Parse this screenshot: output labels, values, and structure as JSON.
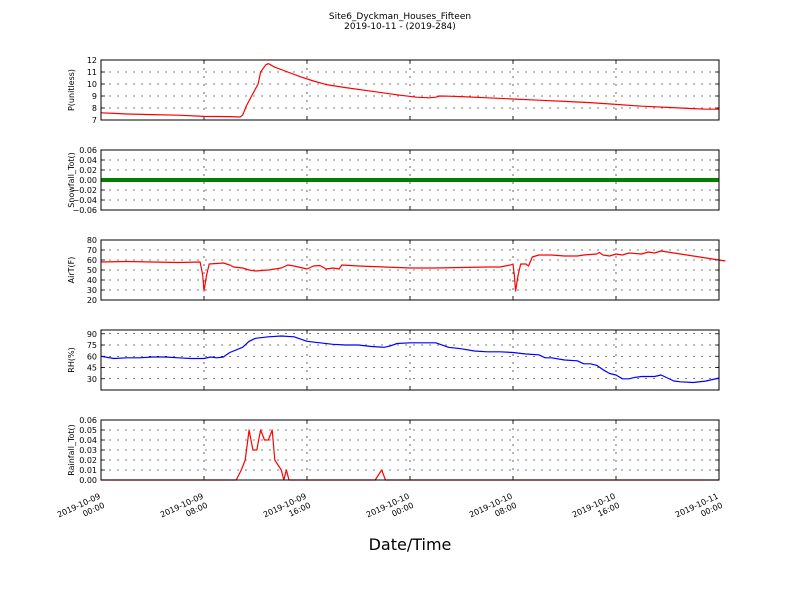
{
  "chart_data": {
    "type": "line",
    "title": "Site6_Dyckman_Houses_Fifteen",
    "subtitle": "2019-10-11 - (2019-284)",
    "xlabel": "Date/Time",
    "x_ticks": [
      [
        "2019-10-09",
        "00:00"
      ],
      [
        "2019-10-09",
        "08:00"
      ],
      [
        "2019-10-09",
        "16:00"
      ],
      [
        "2019-10-10",
        "00:00"
      ],
      [
        "2019-10-10",
        "08:00"
      ],
      [
        "2019-10-10",
        "16:00"
      ],
      [
        "2019-10-11",
        "00:00"
      ]
    ],
    "x_range_hours": [
      0,
      48
    ],
    "grid": true,
    "panels": [
      {
        "ylabel": "P(unitless)",
        "ylim": [
          7,
          12
        ],
        "yticks": [
          7,
          8,
          9,
          10,
          11,
          12
        ],
        "yticklabels": [
          "7",
          "8",
          "9",
          "10",
          "11",
          "12"
        ],
        "color": "#ff0000",
        "style": "line",
        "points": [
          [
            0,
            7.6
          ],
          [
            1,
            7.55
          ],
          [
            2,
            7.5
          ],
          [
            4,
            7.45
          ],
          [
            6,
            7.4
          ],
          [
            8,
            7.3
          ],
          [
            10,
            7.28
          ],
          [
            10.8,
            7.25
          ],
          [
            11,
            7.4
          ],
          [
            11.3,
            8.2
          ],
          [
            11.8,
            9.2
          ],
          [
            12.2,
            10
          ],
          [
            12.4,
            11
          ],
          [
            12.8,
            11.6
          ],
          [
            13,
            11.7
          ],
          [
            13.5,
            11.4
          ],
          [
            14.5,
            11
          ],
          [
            15.5,
            10.6
          ],
          [
            16.5,
            10.25
          ],
          [
            17.5,
            9.95
          ],
          [
            19,
            9.7
          ],
          [
            21,
            9.4
          ],
          [
            23,
            9.1
          ],
          [
            24.5,
            8.9
          ],
          [
            25.5,
            8.85
          ],
          [
            26,
            8.9
          ],
          [
            26.3,
            9.0
          ],
          [
            27,
            8.98
          ],
          [
            28,
            8.95
          ],
          [
            30,
            8.85
          ],
          [
            32,
            8.75
          ],
          [
            34,
            8.65
          ],
          [
            36,
            8.55
          ],
          [
            38,
            8.45
          ],
          [
            40,
            8.3
          ],
          [
            42,
            8.15
          ],
          [
            44,
            8.05
          ],
          [
            46,
            7.95
          ],
          [
            47,
            7.9
          ],
          [
            48,
            7.9
          ]
        ]
      },
      {
        "ylabel": "Snowfall_Tot()",
        "ylim": [
          -0.06,
          0.06
        ],
        "yticks": [
          -0.06,
          -0.04,
          -0.02,
          0.0,
          0.02,
          0.04,
          0.06
        ],
        "yticklabels": [
          "−0.06",
          "−0.04",
          "−0.02",
          "0.00",
          "0.02",
          "0.04",
          "0.06"
        ],
        "color": "#008000",
        "style": "thick",
        "points": [
          [
            0,
            0
          ],
          [
            48,
            0
          ]
        ]
      },
      {
        "ylabel": "AirT(F)",
        "ylim": [
          20,
          80
        ],
        "yticks": [
          20,
          30,
          40,
          50,
          60,
          70,
          80
        ],
        "yticklabels": [
          "20",
          "30",
          "40",
          "50",
          "60",
          "70",
          "80"
        ],
        "color": "#ff0000",
        "style": "line",
        "points": [
          [
            0,
            58
          ],
          [
            2,
            58.5
          ],
          [
            4,
            58
          ],
          [
            6,
            57.5
          ],
          [
            7.7,
            58
          ],
          [
            7.9,
            45
          ],
          [
            8.0,
            29
          ],
          [
            8.2,
            45
          ],
          [
            8.4,
            56
          ],
          [
            9.5,
            57
          ],
          [
            10,
            55
          ],
          [
            10.3,
            53
          ],
          [
            11,
            52
          ],
          [
            11.5,
            50
          ],
          [
            12,
            49
          ],
          [
            13,
            50
          ],
          [
            14,
            52
          ],
          [
            14.5,
            55
          ],
          [
            15,
            54
          ],
          [
            16,
            51
          ],
          [
            16.5,
            54
          ],
          [
            17,
            54.5
          ],
          [
            17.5,
            51
          ],
          [
            18,
            52
          ],
          [
            18.5,
            51
          ],
          [
            18.7,
            55
          ],
          [
            20,
            54
          ],
          [
            22,
            53
          ],
          [
            24,
            52
          ],
          [
            26,
            52
          ],
          [
            28,
            52.5
          ],
          [
            30,
            53
          ],
          [
            31,
            53
          ],
          [
            31.8,
            55
          ],
          [
            32,
            56
          ],
          [
            32.1,
            45
          ],
          [
            32.2,
            29
          ],
          [
            32.4,
            45
          ],
          [
            32.6,
            56
          ],
          [
            33,
            56
          ],
          [
            33.2,
            54
          ],
          [
            33.5,
            63
          ],
          [
            34,
            65
          ],
          [
            35,
            65
          ],
          [
            36,
            64
          ],
          [
            37,
            64
          ],
          [
            37.5,
            65
          ],
          [
            38.5,
            66
          ],
          [
            38.7,
            67.5
          ],
          [
            39,
            65
          ],
          [
            39.5,
            64
          ],
          [
            40,
            66
          ],
          [
            40.5,
            65
          ],
          [
            41,
            67
          ],
          [
            42,
            66
          ],
          [
            42.5,
            68
          ],
          [
            43,
            67
          ],
          [
            43.5,
            69
          ],
          [
            44,
            68
          ],
          [
            44.5,
            67
          ],
          [
            45,
            66
          ],
          [
            46,
            64
          ],
          [
            47,
            62
          ],
          [
            48,
            60
          ],
          [
            48.5,
            59
          ]
        ]
      },
      {
        "ylabel": "RH(%)",
        "ylim": [
          15,
          95
        ],
        "yticks": [
          30,
          45,
          60,
          75,
          90
        ],
        "yticklabels": [
          "30",
          "45",
          "60",
          "75",
          "90"
        ],
        "color": "#0000ff",
        "style": "line",
        "points": [
          [
            0,
            60
          ],
          [
            1,
            57
          ],
          [
            2,
            58
          ],
          [
            3,
            58
          ],
          [
            4,
            59
          ],
          [
            5,
            59
          ],
          [
            6,
            58
          ],
          [
            7,
            57
          ],
          [
            8,
            57
          ],
          [
            8.5,
            59
          ],
          [
            9,
            58
          ],
          [
            9.5,
            59
          ],
          [
            10,
            65
          ],
          [
            11,
            72
          ],
          [
            11.5,
            80
          ],
          [
            12,
            84
          ],
          [
            13,
            86
          ],
          [
            14,
            87
          ],
          [
            15,
            86
          ],
          [
            16,
            80
          ],
          [
            17,
            78
          ],
          [
            18,
            76
          ],
          [
            19,
            75
          ],
          [
            20,
            75
          ],
          [
            21,
            73
          ],
          [
            22,
            72
          ],
          [
            22.5,
            74
          ],
          [
            23,
            77
          ],
          [
            24,
            78
          ],
          [
            25,
            78
          ],
          [
            26,
            78
          ],
          [
            27,
            72
          ],
          [
            28,
            70
          ],
          [
            29,
            67
          ],
          [
            30,
            66
          ],
          [
            31,
            66
          ],
          [
            32,
            65
          ],
          [
            33,
            63
          ],
          [
            34,
            62
          ],
          [
            34.5,
            58
          ],
          [
            35,
            58
          ],
          [
            36,
            55
          ],
          [
            37,
            54
          ],
          [
            37.5,
            50
          ],
          [
            38,
            50
          ],
          [
            38.5,
            48
          ],
          [
            39,
            42
          ],
          [
            39.5,
            37
          ],
          [
            40,
            35
          ],
          [
            40.5,
            30
          ],
          [
            41,
            30
          ],
          [
            41.5,
            32
          ],
          [
            42,
            33
          ],
          [
            43,
            33
          ],
          [
            43.5,
            35
          ],
          [
            44,
            31
          ],
          [
            44.5,
            27
          ],
          [
            45,
            26
          ],
          [
            46,
            25
          ],
          [
            47,
            27
          ],
          [
            48,
            31
          ]
        ]
      },
      {
        "ylabel": "Rainfall_Tot()",
        "ylim": [
          0,
          0.06
        ],
        "yticks": [
          0.0,
          0.01,
          0.02,
          0.03,
          0.04,
          0.05,
          0.06
        ],
        "yticklabels": [
          "0.00",
          "0.01",
          "0.02",
          "0.03",
          "0.04",
          "0.05",
          "0.06"
        ],
        "color": "#ff0000",
        "style": "line",
        "points": [
          [
            0,
            0
          ],
          [
            10.5,
            0
          ],
          [
            10.9,
            0.01
          ],
          [
            11.2,
            0.02
          ],
          [
            11.5,
            0.05
          ],
          [
            11.8,
            0.03
          ],
          [
            12.1,
            0.03
          ],
          [
            12.4,
            0.05
          ],
          [
            12.7,
            0.04
          ],
          [
            13.0,
            0.04
          ],
          [
            13.3,
            0.05
          ],
          [
            13.5,
            0.02
          ],
          [
            14,
            0.01
          ],
          [
            14.2,
            0
          ],
          [
            14.4,
            0.01
          ],
          [
            14.6,
            0
          ],
          [
            21,
            0
          ],
          [
            21.3,
            0
          ],
          [
            21.8,
            0.01
          ],
          [
            22.1,
            0
          ],
          [
            48,
            0
          ]
        ]
      }
    ]
  }
}
